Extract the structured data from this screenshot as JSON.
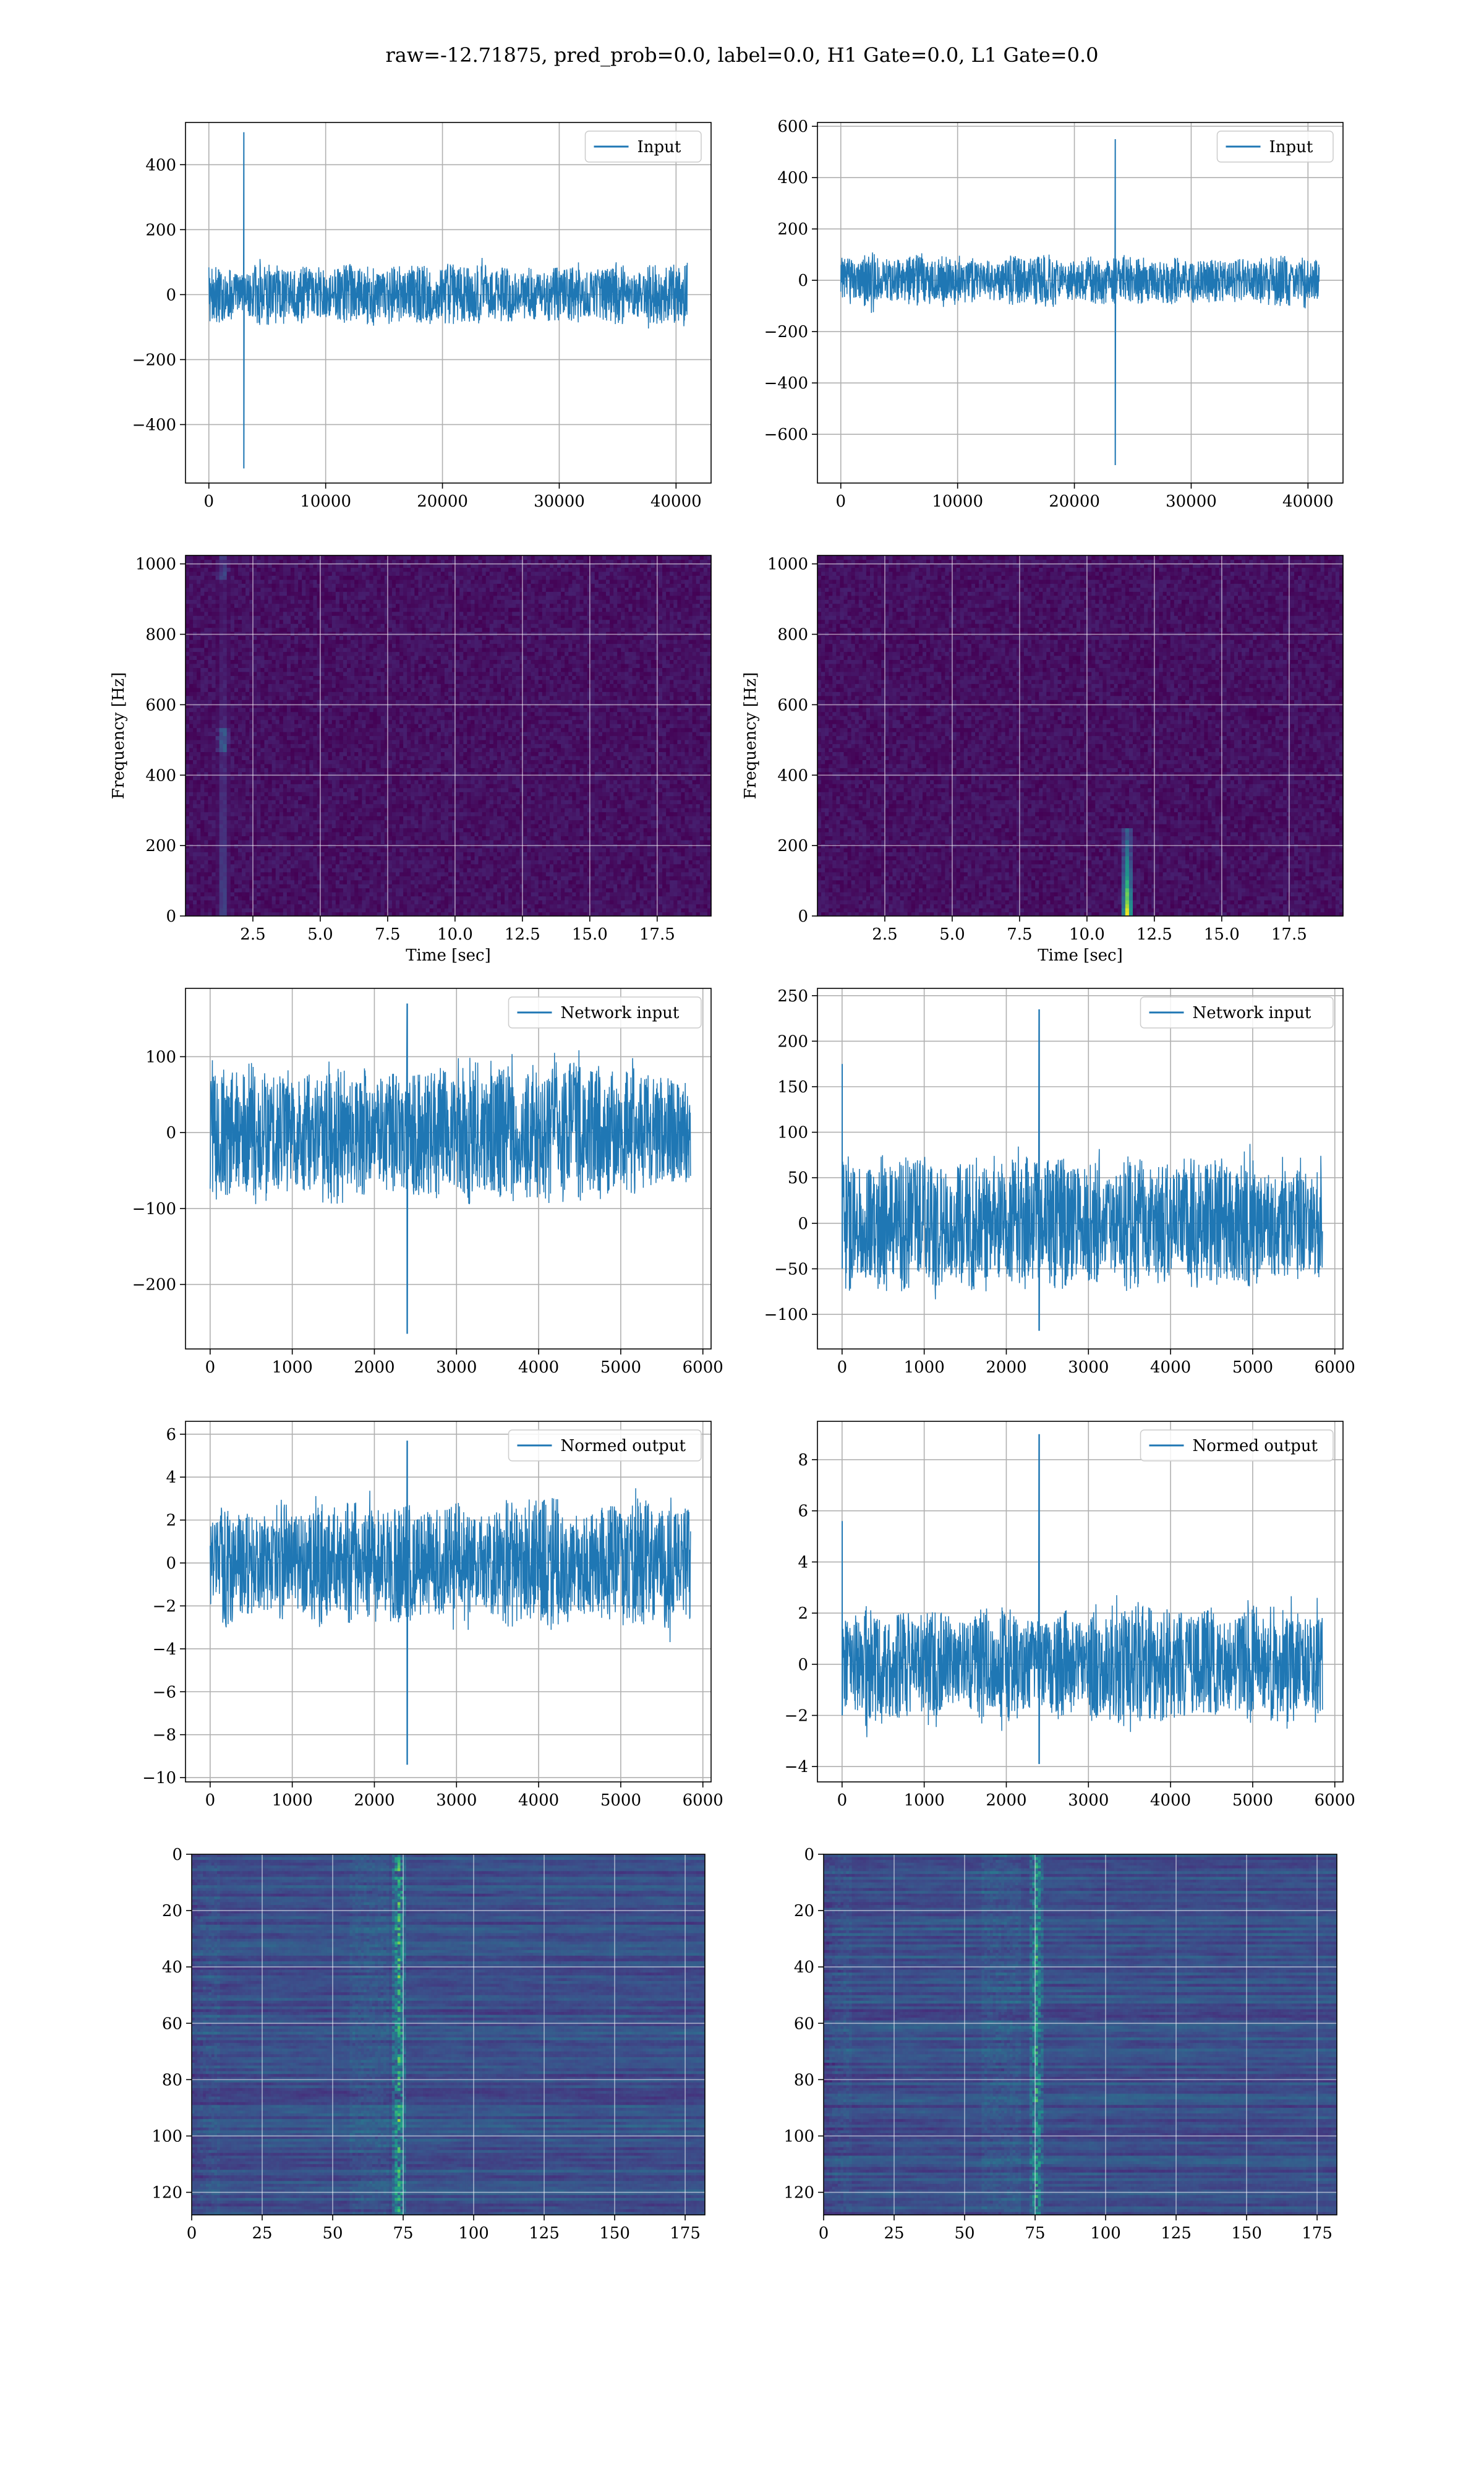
{
  "figure": {
    "suptitle": "raw=-12.71875, pred_prob=0.0, label=0.0, H1 Gate=0.0, L1 Gate=0.0"
  },
  "colors": {
    "line": "#1f77b4",
    "viridis_low": "#440154",
    "viridis_mid": "#21918c",
    "viridis_high": "#fde725",
    "grid": "#b0b0b0"
  },
  "chart_data": [
    {
      "id": "h1-input",
      "type": "line",
      "legend": "Input",
      "legend_loc": "upper right",
      "grid": true,
      "xlim": [
        -2000,
        43000
      ],
      "ylim": [
        -580,
        530
      ],
      "xticks": [
        0,
        10000,
        20000,
        30000,
        40000
      ],
      "yticks": [
        -400,
        -200,
        0,
        200,
        400
      ],
      "xticklabels": [
        "0",
        "10000",
        "20000",
        "30000",
        "40000"
      ],
      "yticklabels": [
        "−400",
        "−200",
        "0",
        "200",
        "400"
      ],
      "xlabel": "",
      "ylabel": "",
      "series": [
        {
          "x_start": 0,
          "x_end": 40960,
          "noise_amplitude": 90,
          "spikes": [
            {
              "x": 3000,
              "ymax": 500,
              "ymin": -535
            }
          ]
        }
      ]
    },
    {
      "id": "l1-input",
      "type": "line",
      "legend": "Input",
      "legend_loc": "upper right",
      "grid": true,
      "xlim": [
        -2000,
        43000
      ],
      "ylim": [
        -790,
        615
      ],
      "xticks": [
        0,
        10000,
        20000,
        30000,
        40000
      ],
      "yticks": [
        -600,
        -400,
        -200,
        0,
        200,
        400,
        600
      ],
      "xticklabels": [
        "0",
        "10000",
        "20000",
        "30000",
        "40000"
      ],
      "yticklabels": [
        "−600",
        "−400",
        "−200",
        "0",
        "200",
        "400",
        "600"
      ],
      "xlabel": "",
      "ylabel": "",
      "series": [
        {
          "x_start": 0,
          "x_end": 40960,
          "noise_amplitude": 95,
          "spikes": [
            {
              "x": 23500,
              "ymax": 550,
              "ymin": -720
            }
          ]
        }
      ]
    },
    {
      "id": "h1-spectrogram",
      "type": "heatmap",
      "grid": true,
      "xlim": [
        0,
        19.5
      ],
      "ylim": [
        0,
        1024
      ],
      "xticks": [
        2.5,
        5.0,
        7.5,
        10.0,
        12.5,
        15.0,
        17.5
      ],
      "yticks": [
        0,
        200,
        400,
        600,
        800,
        1000
      ],
      "xticklabels": [
        "2.5",
        "5.0",
        "7.5",
        "10.0",
        "12.5",
        "15.0",
        "17.5"
      ],
      "yticklabels": [
        "0",
        "200",
        "400",
        "600",
        "800",
        "1000"
      ],
      "xlabel": "Time [sec]",
      "ylabel": "Frequency [Hz]",
      "features": [
        {
          "x": 1.4,
          "f_low": 0,
          "f_high": 1024,
          "intensity": 0.45
        }
      ]
    },
    {
      "id": "l1-spectrogram",
      "type": "heatmap",
      "grid": true,
      "xlim": [
        0,
        19.5
      ],
      "ylim": [
        0,
        1024
      ],
      "xticks": [
        2.5,
        5.0,
        7.5,
        10.0,
        12.5,
        15.0,
        17.5
      ],
      "yticks": [
        0,
        200,
        400,
        600,
        800,
        1000
      ],
      "xticklabels": [
        "2.5",
        "5.0",
        "7.5",
        "10.0",
        "12.5",
        "15.0",
        "17.5"
      ],
      "yticklabels": [
        "0",
        "200",
        "400",
        "600",
        "800",
        "1000"
      ],
      "xlabel": "Time [sec]",
      "ylabel": "Frequency [Hz]",
      "features": [
        {
          "x": 11.5,
          "f_low": 0,
          "f_high": 250,
          "intensity": 1.0
        }
      ]
    },
    {
      "id": "h1-network-input",
      "type": "line",
      "legend": "Network input",
      "legend_loc": "upper right",
      "grid": true,
      "xlim": [
        -300,
        6100
      ],
      "ylim": [
        -285,
        190
      ],
      "xticks": [
        0,
        1000,
        2000,
        3000,
        4000,
        5000,
        6000
      ],
      "yticks": [
        -200,
        -100,
        0,
        100
      ],
      "xticklabels": [
        "0",
        "1000",
        "2000",
        "3000",
        "4000",
        "5000",
        "6000"
      ],
      "yticklabels": [
        "−200",
        "−100",
        "0",
        "100"
      ],
      "xlabel": "",
      "ylabel": "",
      "series": [
        {
          "x_start": 0,
          "x_end": 5850,
          "noise_amplitude": 90,
          "spikes": [
            {
              "x": 2400,
              "ymax": 170,
              "ymin": -265
            }
          ]
        }
      ]
    },
    {
      "id": "l1-network-input",
      "type": "line",
      "legend": "Network input",
      "legend_loc": "upper right",
      "grid": true,
      "xlim": [
        -300,
        6100
      ],
      "ylim": [
        -138,
        258
      ],
      "xticks": [
        0,
        1000,
        2000,
        3000,
        4000,
        5000,
        6000
      ],
      "yticks": [
        -100,
        -50,
        0,
        50,
        100,
        150,
        200,
        250
      ],
      "xticklabels": [
        "0",
        "1000",
        "2000",
        "3000",
        "4000",
        "5000",
        "6000"
      ],
      "yticklabels": [
        "−100",
        "−50",
        "0",
        "50",
        "100",
        "150",
        "200",
        "250"
      ],
      "xlabel": "",
      "ylabel": "",
      "series": [
        {
          "x_start": 0,
          "x_end": 5850,
          "noise_amplitude": 70,
          "spikes": [
            {
              "x": 0,
              "ymax": 175,
              "ymin": -50
            },
            {
              "x": 2400,
              "ymax": 235,
              "ymin": -118
            }
          ]
        }
      ]
    },
    {
      "id": "h1-normed-output",
      "type": "line",
      "legend": "Normed output",
      "legend_loc": "upper right",
      "grid": true,
      "xlim": [
        -300,
        6100
      ],
      "ylim": [
        -10.2,
        6.6
      ],
      "xticks": [
        0,
        1000,
        2000,
        3000,
        4000,
        5000,
        6000
      ],
      "yticks": [
        -10,
        -8,
        -6,
        -4,
        -2,
        0,
        2,
        4,
        6
      ],
      "xticklabels": [
        "0",
        "1000",
        "2000",
        "3000",
        "4000",
        "5000",
        "6000"
      ],
      "yticklabels": [
        "−10",
        "−8",
        "−6",
        "−4",
        "−2",
        "0",
        "2",
        "4",
        "6"
      ],
      "xlabel": "",
      "ylabel": "",
      "series": [
        {
          "x_start": 0,
          "x_end": 5850,
          "noise_amplitude": 2.9,
          "spikes": [
            {
              "x": 2400,
              "ymax": 5.7,
              "ymin": -9.4
            }
          ]
        }
      ]
    },
    {
      "id": "l1-normed-output",
      "type": "line",
      "legend": "Normed output",
      "legend_loc": "upper right",
      "grid": true,
      "xlim": [
        -300,
        6100
      ],
      "ylim": [
        -4.6,
        9.5
      ],
      "xticks": [
        0,
        1000,
        2000,
        3000,
        4000,
        5000,
        6000
      ],
      "yticks": [
        -4,
        -2,
        0,
        2,
        4,
        6,
        8
      ],
      "xticklabels": [
        "0",
        "1000",
        "2000",
        "3000",
        "4000",
        "5000",
        "6000"
      ],
      "yticklabels": [
        "−4",
        "−2",
        "0",
        "2",
        "4",
        "6",
        "8"
      ],
      "xlabel": "",
      "ylabel": "",
      "series": [
        {
          "x_start": 0,
          "x_end": 5850,
          "noise_amplitude": 2.2,
          "spikes": [
            {
              "x": 0,
              "ymax": 5.6,
              "ymin": -2
            },
            {
              "x": 2400,
              "ymax": 9.0,
              "ymin": -3.9
            }
          ]
        }
      ]
    },
    {
      "id": "h1-feature-map",
      "type": "heatmap",
      "grid": true,
      "y_inverted": true,
      "xlim": [
        0,
        182
      ],
      "ylim": [
        0,
        128
      ],
      "xticks": [
        0,
        25,
        50,
        75,
        100,
        125,
        150,
        175
      ],
      "yticks": [
        0,
        20,
        40,
        60,
        80,
        100,
        120
      ],
      "xticklabels": [
        "0",
        "25",
        "50",
        "75",
        "100",
        "125",
        "150",
        "175"
      ],
      "yticklabels": [
        "0",
        "20",
        "40",
        "60",
        "80",
        "100",
        "120"
      ],
      "xlabel": "",
      "ylabel": "",
      "features": [
        {
          "x": 73,
          "intensity": 0.7
        }
      ]
    },
    {
      "id": "l1-feature-map",
      "type": "heatmap",
      "grid": true,
      "y_inverted": true,
      "xlim": [
        0,
        182
      ],
      "ylim": [
        0,
        128
      ],
      "xticks": [
        0,
        25,
        50,
        75,
        100,
        125,
        150,
        175
      ],
      "yticks": [
        0,
        20,
        40,
        60,
        80,
        100,
        120
      ],
      "xticklabels": [
        "0",
        "25",
        "50",
        "75",
        "100",
        "125",
        "150",
        "175"
      ],
      "yticklabels": [
        "0",
        "20",
        "40",
        "60",
        "80",
        "100",
        "120"
      ],
      "xlabel": "",
      "ylabel": "",
      "features": [
        {
          "x": 75,
          "intensity": 0.6
        }
      ]
    }
  ]
}
